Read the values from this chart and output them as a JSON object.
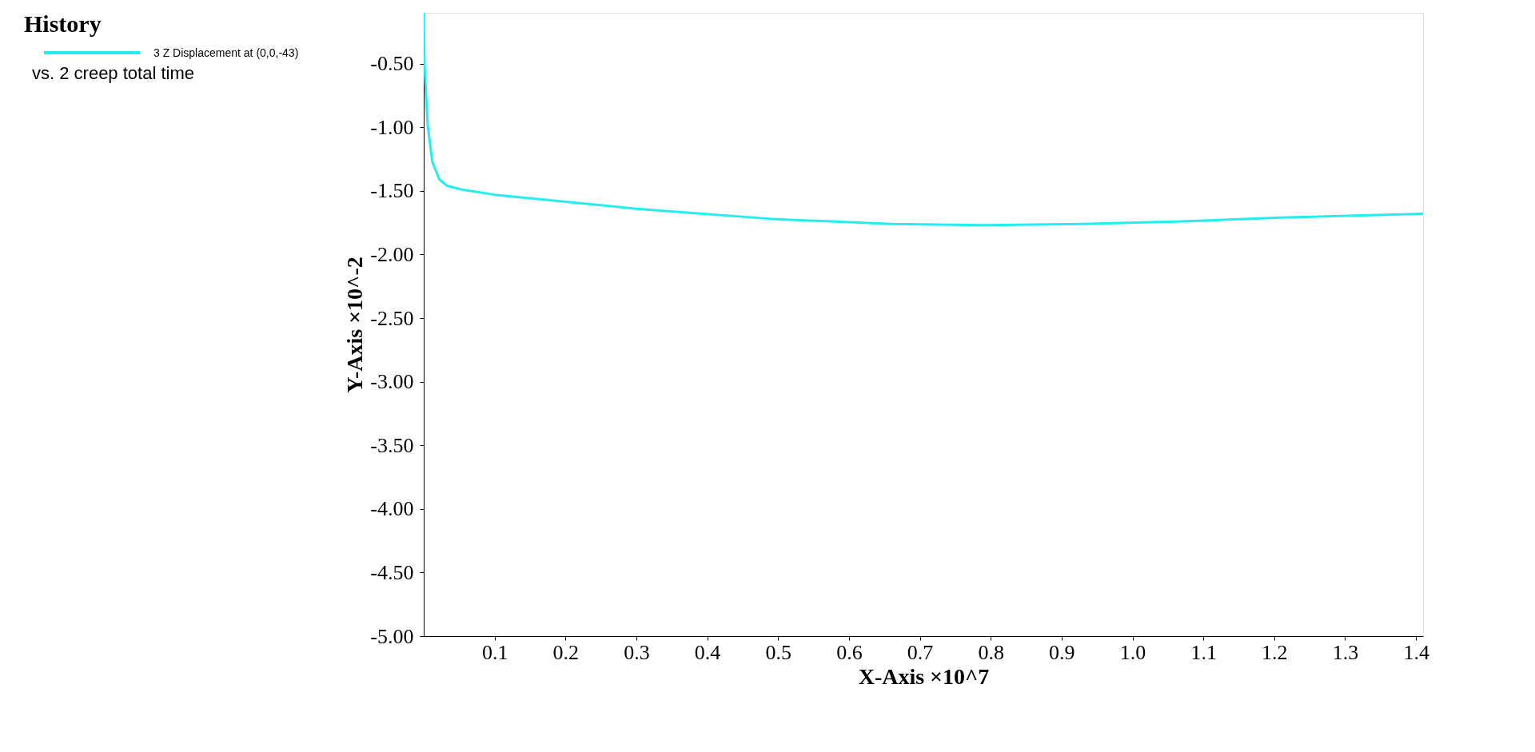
{
  "chart_data": {
    "type": "line",
    "legend_title": "History",
    "annotations": [
      "vs. 2 creep total time"
    ],
    "xlabel": "X-Axis ×10^7",
    "ylabel": "Y-Axis ×10^-2",
    "x": [
      0,
      0.001,
      0.0055,
      0.012,
      0.022,
      0.033,
      0.054,
      0.1,
      0.3,
      0.49,
      0.66,
      0.79,
      0.93,
      1.07,
      1.21,
      1.41
    ],
    "series": [
      {
        "name": "3 Z Displacement at (0,0,-43)",
        "color": "#22eef0",
        "values": [
          -0.1,
          -0.5,
          -0.98,
          -1.27,
          -1.41,
          -1.46,
          -1.49,
          -1.53,
          -1.64,
          -1.72,
          -1.76,
          -1.77,
          -1.76,
          -1.74,
          -1.71,
          -1.68
        ]
      }
    ],
    "xlim": [
      0,
      1.41
    ],
    "ylim": [
      -5.0,
      -0.1
    ],
    "xticks": [
      0.1,
      0.2,
      0.3,
      0.4,
      0.5,
      0.6,
      0.7,
      0.8,
      0.9,
      {
        "value": 1.0,
        "label": "1.0"
      },
      1.1,
      1.2,
      1.3,
      1.4
    ],
    "yticks": [
      {
        "value": -0.5,
        "label": "-0.50"
      },
      {
        "value": -1.0,
        "label": "-1.00"
      },
      {
        "value": -1.5,
        "label": "-1.50"
      },
      {
        "value": -2.0,
        "label": "-2.00"
      },
      {
        "value": -2.5,
        "label": "-2.50"
      },
      {
        "value": -3.0,
        "label": "-3.00"
      },
      {
        "value": -3.5,
        "label": "-3.50"
      },
      {
        "value": -4.0,
        "label": "-4.00"
      },
      {
        "value": -4.5,
        "label": "-4.50"
      },
      {
        "value": -5.0,
        "label": "-5.00"
      }
    ],
    "grid": false,
    "legend": "left",
    "line_style": "solid",
    "marker": "none"
  }
}
